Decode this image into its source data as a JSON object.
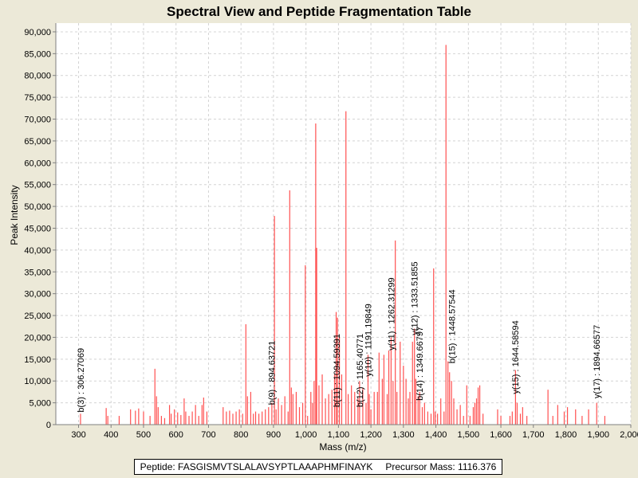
{
  "chart_data": {
    "type": "bar",
    "title": "Spectral View and Peptide Fragmentation Table",
    "xlabel": "Mass (m/z)",
    "ylabel": "Peak Intensity",
    "xlim": [
      230,
      2000
    ],
    "ylim": [
      0,
      92000
    ],
    "xticks": [
      300,
      400,
      500,
      600,
      700,
      800,
      900,
      1000,
      1100,
      1200,
      1300,
      1400,
      1500,
      1600,
      1700,
      1800,
      1900,
      2000
    ],
    "xtick_labels": [
      "300",
      "400",
      "500",
      "600",
      "700",
      "800",
      "900",
      "1,000",
      "1,100",
      "1,200",
      "1,300",
      "1,400",
      "1,500",
      "1,600",
      "1,700",
      "1,800",
      "1,900",
      "2,000"
    ],
    "yticks": [
      0,
      5000,
      10000,
      15000,
      20000,
      25000,
      30000,
      35000,
      40000,
      45000,
      50000,
      55000,
      60000,
      65000,
      70000,
      75000,
      80000,
      85000,
      90000
    ],
    "ytick_labels": [
      "0",
      "5,000",
      "10,000",
      "15,000",
      "20,000",
      "25,000",
      "30,000",
      "35,000",
      "40,000",
      "45,000",
      "50,000",
      "55,000",
      "60,000",
      "65,000",
      "70,000",
      "75,000",
      "80,000",
      "85,000",
      "90,000"
    ],
    "grid": true,
    "peak_color": "#ff5050",
    "peaks": [
      {
        "mz": 306,
        "intensity": 2500
      },
      {
        "mz": 385,
        "intensity": 3800
      },
      {
        "mz": 390,
        "intensity": 2000
      },
      {
        "mz": 425,
        "intensity": 2000
      },
      {
        "mz": 460,
        "intensity": 3500
      },
      {
        "mz": 475,
        "intensity": 3200
      },
      {
        "mz": 485,
        "intensity": 3700
      },
      {
        "mz": 500,
        "intensity": 3000
      },
      {
        "mz": 520,
        "intensity": 2000
      },
      {
        "mz": 535,
        "intensity": 12800
      },
      {
        "mz": 540,
        "intensity": 6500
      },
      {
        "mz": 545,
        "intensity": 4000
      },
      {
        "mz": 555,
        "intensity": 2000
      },
      {
        "mz": 565,
        "intensity": 1500
      },
      {
        "mz": 580,
        "intensity": 4500
      },
      {
        "mz": 585,
        "intensity": 2500
      },
      {
        "mz": 595,
        "intensity": 3500
      },
      {
        "mz": 605,
        "intensity": 2800
      },
      {
        "mz": 615,
        "intensity": 2200
      },
      {
        "mz": 625,
        "intensity": 6000
      },
      {
        "mz": 630,
        "intensity": 3000
      },
      {
        "mz": 640,
        "intensity": 2000
      },
      {
        "mz": 650,
        "intensity": 3000
      },
      {
        "mz": 660,
        "intensity": 4500
      },
      {
        "mz": 670,
        "intensity": 2000
      },
      {
        "mz": 680,
        "intensity": 4500
      },
      {
        "mz": 685,
        "intensity": 6200
      },
      {
        "mz": 695,
        "intensity": 3000
      },
      {
        "mz": 745,
        "intensity": 4000
      },
      {
        "mz": 755,
        "intensity": 3000
      },
      {
        "mz": 765,
        "intensity": 3200
      },
      {
        "mz": 775,
        "intensity": 2500
      },
      {
        "mz": 785,
        "intensity": 3000
      },
      {
        "mz": 795,
        "intensity": 3500
      },
      {
        "mz": 805,
        "intensity": 2500
      },
      {
        "mz": 815,
        "intensity": 23000
      },
      {
        "mz": 820,
        "intensity": 6500
      },
      {
        "mz": 830,
        "intensity": 7500
      },
      {
        "mz": 838,
        "intensity": 2500
      },
      {
        "mz": 845,
        "intensity": 3000
      },
      {
        "mz": 855,
        "intensity": 2500
      },
      {
        "mz": 865,
        "intensity": 3000
      },
      {
        "mz": 875,
        "intensity": 3500
      },
      {
        "mz": 885,
        "intensity": 4000
      },
      {
        "mz": 895,
        "intensity": 5000
      },
      {
        "mz": 903,
        "intensity": 47800
      },
      {
        "mz": 908,
        "intensity": 3500
      },
      {
        "mz": 915,
        "intensity": 6000
      },
      {
        "mz": 925,
        "intensity": 4500
      },
      {
        "mz": 935,
        "intensity": 6500
      },
      {
        "mz": 945,
        "intensity": 3000
      },
      {
        "mz": 950,
        "intensity": 53700
      },
      {
        "mz": 955,
        "intensity": 8500
      },
      {
        "mz": 960,
        "intensity": 7000
      },
      {
        "mz": 970,
        "intensity": 7500
      },
      {
        "mz": 980,
        "intensity": 4000
      },
      {
        "mz": 990,
        "intensity": 5000
      },
      {
        "mz": 998,
        "intensity": 36500
      },
      {
        "mz": 1005,
        "intensity": 2000
      },
      {
        "mz": 1015,
        "intensity": 7500
      },
      {
        "mz": 1020,
        "intensity": 5000
      },
      {
        "mz": 1025,
        "intensity": 10000
      },
      {
        "mz": 1030,
        "intensity": 69000
      },
      {
        "mz": 1033,
        "intensity": 40500
      },
      {
        "mz": 1040,
        "intensity": 9000
      },
      {
        "mz": 1050,
        "intensity": 11500
      },
      {
        "mz": 1060,
        "intensity": 6000
      },
      {
        "mz": 1070,
        "intensity": 7000
      },
      {
        "mz": 1080,
        "intensity": 8000
      },
      {
        "mz": 1088,
        "intensity": 11500
      },
      {
        "mz": 1093,
        "intensity": 25800
      },
      {
        "mz": 1097,
        "intensity": 24500
      },
      {
        "mz": 1103,
        "intensity": 20000
      },
      {
        "mz": 1110,
        "intensity": 11500
      },
      {
        "mz": 1123,
        "intensity": 71800
      },
      {
        "mz": 1130,
        "intensity": 7000
      },
      {
        "mz": 1140,
        "intensity": 9000
      },
      {
        "mz": 1150,
        "intensity": 7500
      },
      {
        "mz": 1160,
        "intensity": 6000
      },
      {
        "mz": 1165,
        "intensity": 10000
      },
      {
        "mz": 1175,
        "intensity": 8500
      },
      {
        "mz": 1185,
        "intensity": 5000
      },
      {
        "mz": 1191,
        "intensity": 16000
      },
      {
        "mz": 1195,
        "intensity": 7000
      },
      {
        "mz": 1200,
        "intensity": 3500
      },
      {
        "mz": 1210,
        "intensity": 7500
      },
      {
        "mz": 1220,
        "intensity": 7500
      },
      {
        "mz": 1225,
        "intensity": 16500
      },
      {
        "mz": 1235,
        "intensity": 10500
      },
      {
        "mz": 1240,
        "intensity": 16000
      },
      {
        "mz": 1250,
        "intensity": 7000
      },
      {
        "mz": 1255,
        "intensity": 17000
      },
      {
        "mz": 1262,
        "intensity": 20000
      },
      {
        "mz": 1268,
        "intensity": 10000
      },
      {
        "mz": 1275,
        "intensity": 42200
      },
      {
        "mz": 1280,
        "intensity": 7500
      },
      {
        "mz": 1290,
        "intensity": 19000
      },
      {
        "mz": 1300,
        "intensity": 13500
      },
      {
        "mz": 1308,
        "intensity": 10500
      },
      {
        "mz": 1315,
        "intensity": 6000
      },
      {
        "mz": 1320,
        "intensity": 7500
      },
      {
        "mz": 1328,
        "intensity": 19000
      },
      {
        "mz": 1334,
        "intensity": 22000
      },
      {
        "mz": 1338,
        "intensity": 10500
      },
      {
        "mz": 1345,
        "intensity": 6500
      },
      {
        "mz": 1350,
        "intensity": 7500
      },
      {
        "mz": 1358,
        "intensity": 4000
      },
      {
        "mz": 1365,
        "intensity": 5000
      },
      {
        "mz": 1375,
        "intensity": 3000
      },
      {
        "mz": 1385,
        "intensity": 2500
      },
      {
        "mz": 1393,
        "intensity": 35800
      },
      {
        "mz": 1398,
        "intensity": 3000
      },
      {
        "mz": 1405,
        "intensity": 2500
      },
      {
        "mz": 1415,
        "intensity": 6000
      },
      {
        "mz": 1425,
        "intensity": 3000
      },
      {
        "mz": 1431,
        "intensity": 87000
      },
      {
        "mz": 1437,
        "intensity": 14500
      },
      {
        "mz": 1442,
        "intensity": 12000
      },
      {
        "mz": 1448,
        "intensity": 10000
      },
      {
        "mz": 1455,
        "intensity": 6000
      },
      {
        "mz": 1465,
        "intensity": 3500
      },
      {
        "mz": 1475,
        "intensity": 4500
      },
      {
        "mz": 1485,
        "intensity": 2000
      },
      {
        "mz": 1495,
        "intensity": 9000
      },
      {
        "mz": 1505,
        "intensity": 2000
      },
      {
        "mz": 1515,
        "intensity": 4000
      },
      {
        "mz": 1520,
        "intensity": 5000
      },
      {
        "mz": 1525,
        "intensity": 6000
      },
      {
        "mz": 1530,
        "intensity": 8500
      },
      {
        "mz": 1535,
        "intensity": 9000
      },
      {
        "mz": 1545,
        "intensity": 2500
      },
      {
        "mz": 1590,
        "intensity": 3500
      },
      {
        "mz": 1600,
        "intensity": 2000
      },
      {
        "mz": 1628,
        "intensity": 2000
      },
      {
        "mz": 1635,
        "intensity": 3000
      },
      {
        "mz": 1645,
        "intensity": 12500
      },
      {
        "mz": 1650,
        "intensity": 5000
      },
      {
        "mz": 1660,
        "intensity": 2500
      },
      {
        "mz": 1667,
        "intensity": 4000
      },
      {
        "mz": 1680,
        "intensity": 2000
      },
      {
        "mz": 1745,
        "intensity": 8000
      },
      {
        "mz": 1760,
        "intensity": 2000
      },
      {
        "mz": 1775,
        "intensity": 4500
      },
      {
        "mz": 1795,
        "intensity": 3000
      },
      {
        "mz": 1805,
        "intensity": 4000
      },
      {
        "mz": 1830,
        "intensity": 3500
      },
      {
        "mz": 1850,
        "intensity": 2000
      },
      {
        "mz": 1870,
        "intensity": 3500
      },
      {
        "mz": 1895,
        "intensity": 5000
      },
      {
        "mz": 1920,
        "intensity": 2000
      }
    ],
    "annotations": [
      {
        "label": "b(3) : 306.27069",
        "mz": 306.27,
        "base": 2800
      },
      {
        "label": "b(9) : 894.63721",
        "mz": 894.64,
        "base": 4500
      },
      {
        "label": "b(11) : 1094.59391",
        "mz": 1094.59,
        "base": 4000
      },
      {
        "label": "b(12) : 1165.40771",
        "mz": 1165.41,
        "base": 4000
      },
      {
        "label": "y(10) : 1191.19849",
        "mz": 1191.2,
        "base": 11000
      },
      {
        "label": "y(11) : 1262.31299",
        "mz": 1262.31,
        "base": 17000
      },
      {
        "label": "y(12) : 1333.51855",
        "mz": 1333.52,
        "base": 20500
      },
      {
        "label": "b(14) : 1349.66797",
        "mz": 1349.67,
        "base": 5500
      },
      {
        "label": "b(15) : 1448.57544",
        "mz": 1448.58,
        "base": 14000
      },
      {
        "label": "y(15) : 1644.58594",
        "mz": 1644.59,
        "base": 7000
      },
      {
        "label": "y(17) : 1894.66577",
        "mz": 1894.67,
        "base": 6000
      }
    ]
  },
  "footer": {
    "peptide": "Peptide: FASGISMVTSLALAVSYPTLAAAPHMFINAYK",
    "precursor": "Precursor Mass: 1116.376"
  }
}
